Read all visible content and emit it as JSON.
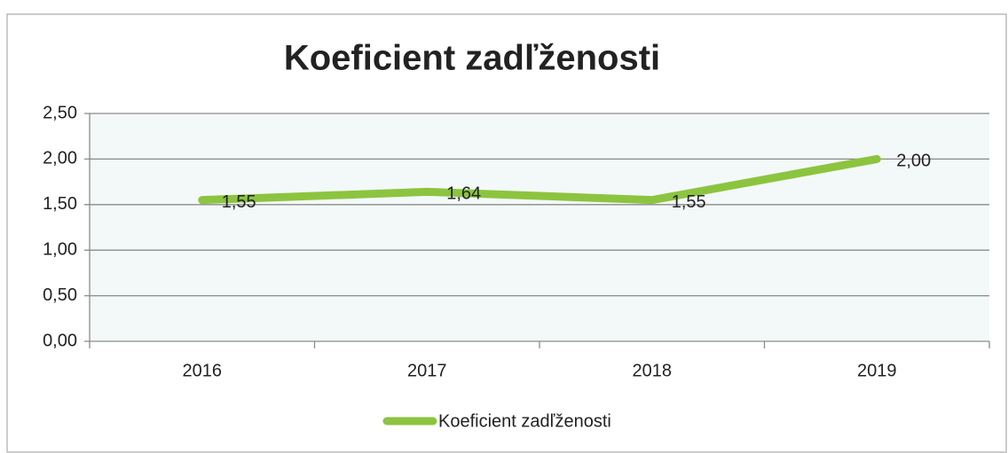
{
  "chart_data": {
    "type": "line",
    "title": "Koeficient zadľženosti",
    "categories": [
      "2016",
      "2017",
      "2018",
      "2019"
    ],
    "series": [
      {
        "name": "Koeficient zadľženosti",
        "color": "#8cc43f",
        "values": [
          1.55,
          1.64,
          1.55,
          2.0
        ],
        "value_labels": [
          "1,55",
          "1,64",
          "1,55",
          "2,00"
        ]
      }
    ],
    "ylim": [
      0,
      2.5
    ],
    "yticks": [
      {
        "value": 0,
        "label": "0,00"
      },
      {
        "value": 0.5,
        "label": "0,50"
      },
      {
        "value": 1,
        "label": "1,00"
      },
      {
        "value": 1.5,
        "label": "1,50"
      },
      {
        "value": 2,
        "label": "2,00"
      },
      {
        "value": 2.5,
        "label": "2,50"
      }
    ],
    "grid": true,
    "legend": "bottom"
  }
}
